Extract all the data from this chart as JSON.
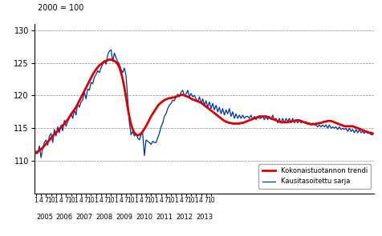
{
  "ylabel": "2000 = 100",
  "ylim": [
    105,
    131
  ],
  "yticks": [
    110,
    115,
    120,
    125,
    130
  ],
  "legend_labels": [
    "Kokonaistuotannon trendi",
    "Kausitasoitettu sarja"
  ],
  "trend_color": "#dd0000",
  "seasonal_color": "#0033aa",
  "trend_linewidth": 2.0,
  "seasonal_linewidth": 0.9,
  "background_color": "#ffffff",
  "trend": [
    111.2,
    111.4,
    111.6,
    111.8,
    112.0,
    112.3,
    112.6,
    112.9,
    113.2,
    113.5,
    113.8,
    114.1,
    114.3,
    114.6,
    114.9,
    115.1,
    115.4,
    115.7,
    116.0,
    116.3,
    116.7,
    117.1,
    117.5,
    117.8,
    118.2,
    118.7,
    119.2,
    119.7,
    120.2,
    120.7,
    121.2,
    121.7,
    122.2,
    122.7,
    123.2,
    123.6,
    124.0,
    124.3,
    124.6,
    124.8,
    125.0,
    125.2,
    125.3,
    125.4,
    125.5,
    125.5,
    125.4,
    125.3,
    125.1,
    124.8,
    124.3,
    123.5,
    122.5,
    121.2,
    119.7,
    118.1,
    116.7,
    115.6,
    114.8,
    114.3,
    114.0,
    113.9,
    114.0,
    114.2,
    114.5,
    114.9,
    115.3,
    115.8,
    116.3,
    116.8,
    117.2,
    117.6,
    118.0,
    118.4,
    118.7,
    118.9,
    119.1,
    119.3,
    119.4,
    119.5,
    119.6,
    119.6,
    119.7,
    119.7,
    119.8,
    119.9,
    120.0,
    120.1,
    120.1,
    120.0,
    119.9,
    119.8,
    119.7,
    119.5,
    119.4,
    119.3,
    119.2,
    119.1,
    119.0,
    118.9,
    118.7,
    118.5,
    118.3,
    118.1,
    117.9,
    117.7,
    117.5,
    117.3,
    117.1,
    116.9,
    116.7,
    116.5,
    116.3,
    116.1,
    116.0,
    115.9,
    115.8,
    115.8,
    115.7,
    115.7,
    115.7,
    115.7,
    115.7,
    115.8,
    115.8,
    115.9,
    116.0,
    116.1,
    116.2,
    116.3,
    116.4,
    116.5,
    116.6,
    116.7,
    116.8,
    116.8,
    116.8,
    116.8,
    116.8,
    116.7,
    116.6,
    116.5,
    116.4,
    116.3,
    116.2,
    116.1,
    116.0,
    115.9,
    115.9,
    115.9,
    115.9,
    115.9,
    116.0,
    116.0,
    116.1,
    116.1,
    116.2,
    116.2,
    116.2,
    116.1,
    116.0,
    115.9,
    115.8,
    115.7,
    115.7,
    115.6,
    115.6,
    115.6,
    115.7,
    115.7,
    115.8,
    115.8,
    115.9,
    116.0,
    116.0,
    116.1,
    116.1,
    116.1,
    116.0,
    115.9,
    115.8,
    115.7,
    115.6,
    115.5,
    115.4,
    115.3,
    115.3,
    115.3,
    115.3,
    115.3,
    115.3,
    115.2,
    115.1,
    115.0,
    114.9,
    114.8,
    114.7,
    114.6,
    114.5,
    114.4,
    114.3,
    114.3,
    114.2
  ],
  "seasonal": [
    111.5,
    111.1,
    112.3,
    110.5,
    112.0,
    112.8,
    113.2,
    112.4,
    113.8,
    114.2,
    112.8,
    114.8,
    113.8,
    115.2,
    114.3,
    115.5,
    114.6,
    116.2,
    115.3,
    116.0,
    116.8,
    117.3,
    116.5,
    117.8,
    117.0,
    118.8,
    118.2,
    119.0,
    119.3,
    120.5,
    119.5,
    121.0,
    120.8,
    122.0,
    121.8,
    122.8,
    123.2,
    123.8,
    123.5,
    124.2,
    124.8,
    125.3,
    124.8,
    126.2,
    126.8,
    127.0,
    125.2,
    126.5,
    125.8,
    125.2,
    124.8,
    124.0,
    123.5,
    124.2,
    123.0,
    119.5,
    115.8,
    114.0,
    114.5,
    113.8,
    114.2,
    113.5,
    113.2,
    114.0,
    114.2,
    110.8,
    113.2,
    113.0,
    112.8,
    112.5,
    113.0,
    112.8,
    112.8,
    113.5,
    114.2,
    115.2,
    115.8,
    116.8,
    117.2,
    118.0,
    118.5,
    118.8,
    119.3,
    119.2,
    119.8,
    120.2,
    119.8,
    120.5,
    120.8,
    120.0,
    120.2,
    120.8,
    119.8,
    120.3,
    119.8,
    120.0,
    119.5,
    119.0,
    119.8,
    118.8,
    119.5,
    118.5,
    119.2,
    118.2,
    119.0,
    118.0,
    118.8,
    117.8,
    118.5,
    117.5,
    118.2,
    117.2,
    118.0,
    117.0,
    117.8,
    117.2,
    118.0,
    116.8,
    117.5,
    116.5,
    117.2,
    116.5,
    117.0,
    116.5,
    117.0,
    116.5,
    116.8,
    116.8,
    116.5,
    117.0,
    116.3,
    116.8,
    116.3,
    116.8,
    116.5,
    116.5,
    116.8,
    116.3,
    116.8,
    116.3,
    116.8,
    116.3,
    117.0,
    116.3,
    116.5,
    115.8,
    116.5,
    115.8,
    116.5,
    115.8,
    116.5,
    116.0,
    116.5,
    115.8,
    116.5,
    115.8,
    116.2,
    115.8,
    116.2,
    115.8,
    116.0,
    115.8,
    116.0,
    115.8,
    115.8,
    115.5,
    115.8,
    115.5,
    115.5,
    115.2,
    115.5,
    115.2,
    115.5,
    115.2,
    115.5,
    115.0,
    115.5,
    115.0,
    115.2,
    115.0,
    115.2,
    114.8,
    115.2,
    114.8,
    115.0,
    114.8,
    115.0,
    114.5,
    115.0,
    114.5,
    114.8,
    114.3,
    114.8,
    114.3,
    114.8,
    114.3,
    114.5,
    114.2,
    114.5,
    114.2,
    114.3,
    114.0,
    114.0
  ]
}
